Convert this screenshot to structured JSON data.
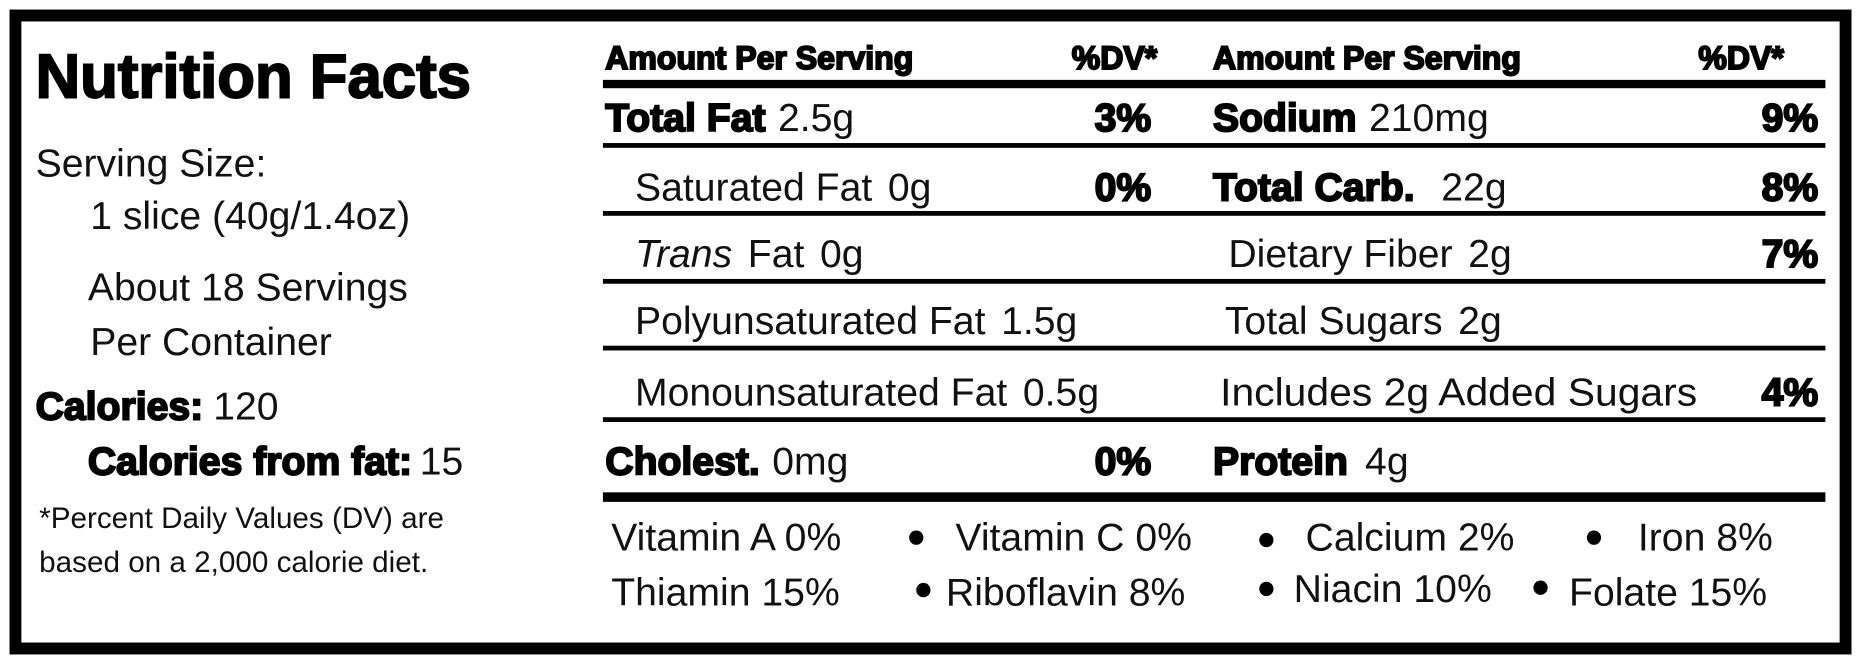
{
  "title": "Nutrition Facts",
  "serving": {
    "label": "Serving Size:",
    "size": "1 slice (40g/1.4oz)",
    "servings": [
      "About 18 Servings",
      "Per Container"
    ]
  },
  "calories": {
    "label": "Calories:",
    "value": "120"
  },
  "calories_from_fat": {
    "label": "Calories from fat:",
    "value": "15"
  },
  "footnote": [
    "*Percent Daily Values (DV) are",
    "based on a 2,000 calorie diet."
  ],
  "headers": {
    "left": {
      "amount": "Amount Per Serving",
      "dv": "%DV*"
    },
    "right": {
      "amount": "Amount Per Serving",
      "dv": "%DV*"
    }
  },
  "left_rows": [
    {
      "name": "Total Fat",
      "amount": "2.5g",
      "dv": "3%"
    },
    {
      "name": "Saturated Fat",
      "amount": "0g",
      "dv": "0%"
    },
    {
      "prefix": "Trans",
      "name": "Fat",
      "amount": "0g"
    },
    {
      "name": "Polyunsaturated Fat",
      "amount": "1.5g"
    },
    {
      "name": "Monounsaturated Fat",
      "amount": "0.5g"
    },
    {
      "name": "Cholest.",
      "amount": "0mg",
      "dv": "0%"
    }
  ],
  "right_rows": [
    {
      "name": "Sodium",
      "amount": "210mg",
      "dv": "9%"
    },
    {
      "name": "Total Carb.",
      "amount": "22g",
      "dv": "8%"
    },
    {
      "name": "Dietary Fiber",
      "amount": "2g",
      "dv": "7%"
    },
    {
      "name": "Total Sugars",
      "amount": "2g"
    },
    {
      "name": "Includes 2g Added Sugars",
      "dv": "4%"
    },
    {
      "name": "Protein",
      "amount": "4g"
    }
  ],
  "vitamins": [
    [
      "Vitamin A 0%",
      "Vitamin C 0%",
      "Calcium 2%",
      "Iron 8%"
    ],
    [
      "Thiamin 15%",
      "Riboflavin 8%",
      "Niacin 10%",
      "Folate 15%"
    ]
  ]
}
